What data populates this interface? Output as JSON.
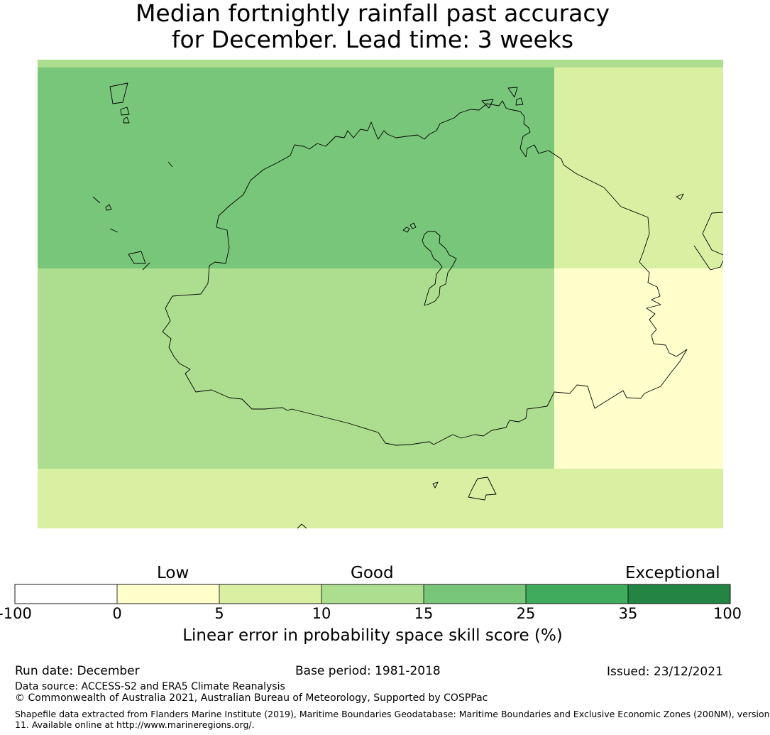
{
  "title": {
    "line1": "Median fortnightly rainfall past accuracy",
    "line2": "for December. Lead time: 3 weeks"
  },
  "map": {
    "cells": [
      {
        "row": 0,
        "col": 0,
        "value_band": "15-25",
        "color": "#78c679"
      },
      {
        "row": 0,
        "col": 1,
        "value_band": "5-10",
        "color": "#d9f0a3"
      },
      {
        "row": 1,
        "col": 0,
        "value_band": "10-15",
        "color": "#addd8e"
      },
      {
        "row": 1,
        "col": 1,
        "value_band": "0-5",
        "color": "#ffffcc"
      },
      {
        "row": 2,
        "col": 0,
        "value_band": "5-10",
        "color": "#d9f0a3"
      },
      {
        "row": 2,
        "col": 1,
        "value_band": "5-10",
        "color": "#d9f0a3"
      }
    ],
    "top_strip_color": "#addd8e",
    "boundary_color": "#000000"
  },
  "legend": {
    "categories": {
      "low": "Low",
      "good": "Good",
      "exceptional": "Exceptional"
    },
    "ticks": [
      "-100",
      "0",
      "5",
      "10",
      "15",
      "25",
      "35",
      "100"
    ],
    "colors": [
      "#ffffff",
      "#ffffcc",
      "#d9f0a3",
      "#addd8e",
      "#78c679",
      "#41ab5d",
      "#238443"
    ],
    "axis_label": "Linear error in probability space skill score (%)"
  },
  "footer": {
    "run_date": "Run date: December",
    "base_period": "Base period: 1981-2018",
    "issued": "Issued: 23/12/2021",
    "data_source": "Data source: ACCESS-S2 and ERA5 Climate Reanalysis",
    "copyright": "© Commonwealth of Australia 2021, Australian Bureau of Meteorology, Supported by COSPPac",
    "shapefile_line1": "Shapefile data extracted from Flanders Marine Institute (2019), Maritime Boundaries Geodatabase: Maritime Boundaries and Exclusive Economic Zones (200NM), version",
    "shapefile_line2": "11. Available online at http://www.marineregions.org/."
  }
}
